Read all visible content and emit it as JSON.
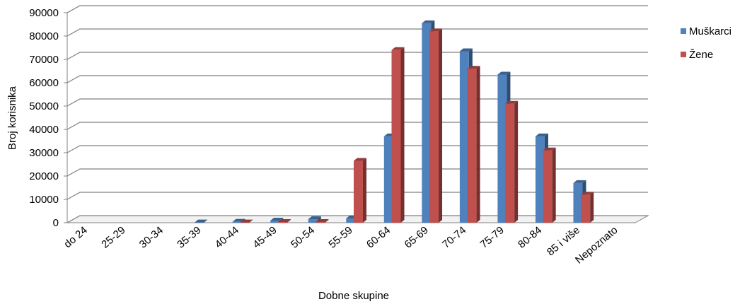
{
  "chart_data": {
    "type": "bar",
    "style": "3d-clustered",
    "xlabel": "Dobne skupine",
    "ylabel": "Broj korisnika",
    "ylim": [
      0,
      90000
    ],
    "yticks": [
      0,
      10000,
      20000,
      30000,
      40000,
      50000,
      60000,
      70000,
      80000,
      90000
    ],
    "grid": true,
    "legend_position": "right",
    "categories": [
      "do 24",
      "25-29",
      "30-34",
      "35-39",
      "40-44",
      "45-49",
      "50-54",
      "55-59",
      "60-64",
      "65-69",
      "70-74",
      "75-79",
      "80-84",
      "85 i više",
      "Nepoznato"
    ],
    "series": [
      {
        "name": "Muškarci",
        "color": "#4f81bd",
        "values": [
          0,
          0,
          0,
          100,
          400,
          900,
          1500,
          1800,
          37000,
          85500,
          73500,
          63500,
          37000,
          17000,
          0
        ]
      },
      {
        "name": "Žene",
        "color": "#c0504d",
        "values": [
          0,
          0,
          0,
          0,
          100,
          300,
          300,
          26500,
          74000,
          82000,
          66000,
          51000,
          31000,
          12000,
          0
        ]
      }
    ]
  }
}
